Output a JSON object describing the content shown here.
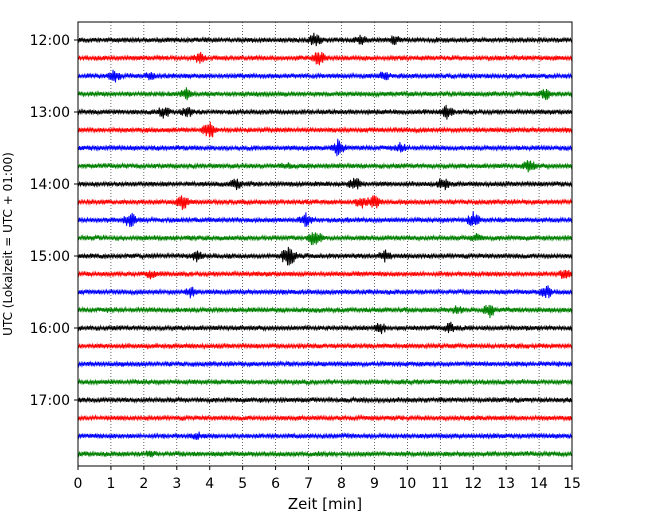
{
  "chart_data": {
    "type": "helicorder",
    "xlabel": "Zeit  [min]",
    "ylabel": "UTC (Lokalzeit = UTC + 01:00)",
    "x_ticks": [
      "0",
      "1",
      "2",
      "3",
      "4",
      "5",
      "6",
      "7",
      "8",
      "9",
      "10",
      "11",
      "12",
      "13",
      "14",
      "15"
    ],
    "xlim": [
      0,
      15
    ],
    "x_grid": "dotted",
    "y_ticks": [
      "12:00",
      "13:00",
      "14:00",
      "15:00",
      "16:00",
      "17:00"
    ],
    "trace_minutes_per_line": 15,
    "trace_colors": [
      "#000000",
      "#ff0000",
      "#0000ff",
      "#008000"
    ],
    "traces": [
      {
        "start": "12:00",
        "events": [
          {
            "t": 7.2,
            "a": 0.6
          },
          {
            "t": 8.6,
            "a": 0.5
          },
          {
            "t": 9.6,
            "a": 0.5
          }
        ]
      },
      {
        "start": "12:15",
        "events": [
          {
            "t": 3.7,
            "a": 0.6
          },
          {
            "t": 7.3,
            "a": 0.7
          }
        ]
      },
      {
        "start": "12:30",
        "events": [
          {
            "t": 1.1,
            "a": 0.5
          },
          {
            "t": 2.2,
            "a": 0.4
          },
          {
            "t": 9.3,
            "a": 0.4
          }
        ]
      },
      {
        "start": "12:45",
        "events": [
          {
            "t": 3.3,
            "a": 0.5
          },
          {
            "t": 14.2,
            "a": 0.5
          }
        ]
      },
      {
        "start": "13:00",
        "events": [
          {
            "t": 2.6,
            "a": 0.6
          },
          {
            "t": 3.3,
            "a": 0.5
          },
          {
            "t": 11.2,
            "a": 0.7
          }
        ]
      },
      {
        "start": "13:15",
        "events": [
          {
            "t": 4.0,
            "a": 0.9
          }
        ]
      },
      {
        "start": "13:30",
        "events": [
          {
            "t": 7.9,
            "a": 0.8
          },
          {
            "t": 9.8,
            "a": 0.4
          }
        ]
      },
      {
        "start": "13:45",
        "events": [
          {
            "t": 13.7,
            "a": 0.6
          },
          {
            "t": 6.3,
            "a": 0.3
          }
        ]
      },
      {
        "start": "14:00",
        "events": [
          {
            "t": 8.4,
            "a": 0.7
          },
          {
            "t": 11.1,
            "a": 0.6
          },
          {
            "t": 4.8,
            "a": 0.5
          }
        ]
      },
      {
        "start": "14:15",
        "events": [
          {
            "t": 3.2,
            "a": 0.8
          },
          {
            "t": 9.0,
            "a": 0.7
          },
          {
            "t": 8.6,
            "a": 0.6
          }
        ]
      },
      {
        "start": "14:30",
        "events": [
          {
            "t": 1.6,
            "a": 0.7
          },
          {
            "t": 6.9,
            "a": 0.6
          },
          {
            "t": 12.0,
            "a": 0.7
          }
        ]
      },
      {
        "start": "14:45",
        "events": [
          {
            "t": 7.2,
            "a": 0.8
          },
          {
            "t": 12.1,
            "a": 0.5
          }
        ]
      },
      {
        "start": "15:00",
        "events": [
          {
            "t": 3.6,
            "a": 0.5
          },
          {
            "t": 6.4,
            "a": 1.0
          },
          {
            "t": 9.3,
            "a": 0.6
          }
        ]
      },
      {
        "start": "15:15",
        "events": [
          {
            "t": 2.2,
            "a": 0.4
          },
          {
            "t": 14.8,
            "a": 0.6
          }
        ]
      },
      {
        "start": "15:30",
        "events": [
          {
            "t": 3.4,
            "a": 0.5
          },
          {
            "t": 14.2,
            "a": 0.7
          }
        ]
      },
      {
        "start": "15:45",
        "events": [
          {
            "t": 11.5,
            "a": 0.4
          },
          {
            "t": 12.5,
            "a": 0.7
          }
        ]
      },
      {
        "start": "16:00",
        "events": [
          {
            "t": 9.2,
            "a": 0.5
          },
          {
            "t": 11.3,
            "a": 0.5
          }
        ]
      },
      {
        "start": "16:15",
        "events": []
      },
      {
        "start": "16:30",
        "events": []
      },
      {
        "start": "16:45",
        "events": []
      },
      {
        "start": "17:00",
        "events": []
      },
      {
        "start": "17:15",
        "events": []
      },
      {
        "start": "17:30",
        "events": [
          {
            "t": 3.6,
            "a": 0.3
          }
        ]
      },
      {
        "start": "17:45",
        "events": [
          {
            "t": 2.2,
            "a": 0.3
          }
        ]
      }
    ]
  }
}
